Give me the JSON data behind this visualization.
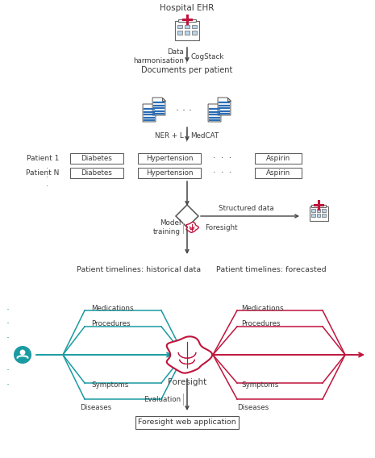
{
  "bg_color": "#ffffff",
  "text_color": "#3a3a3a",
  "arrow_color": "#444444",
  "teal_color": "#1a9ba1",
  "crimson_color": "#c0143c",
  "nodes": {
    "hospital_ehr_label": "Hospital EHR",
    "data_harmonisation": "Data\nharmonisation",
    "cogstack": "CogStack",
    "documents_per_patient": "Documents per patient",
    "ner_l": "NER + L",
    "medcat": "MedCAT",
    "patient1": "Patient 1",
    "patientN": "Patient N",
    "diabetes1": "Diabetes",
    "hypertension1": "Hypertension",
    "aspirin1": "Aspirin",
    "diabetes2": "Diabetes",
    "hypertension2": "Hypertension",
    "aspirin2": "Aspirin",
    "structured_data": "Structured data",
    "model_training": "Model\ntraining",
    "foresight_label": "Foresight",
    "historical_title": "Patient timelines: historical data",
    "forecasted_title": "Patient timelines: forecasted",
    "medications_hist": "Medications",
    "procedures_hist": "Procedures",
    "symptoms_hist": "Symptoms",
    "diseases_hist": "Diseases",
    "medications_fore": "Medications",
    "procedures_fore": "Procedures",
    "symptoms_fore": "Symptoms",
    "diseases_fore": "Diseases",
    "foresight_brain": "Foresight",
    "evaluation": "Evaluation",
    "web_app": "Foresight web application"
  }
}
